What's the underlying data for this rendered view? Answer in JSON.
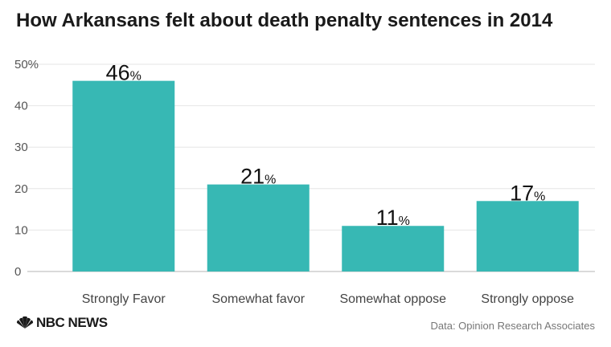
{
  "title": "How Arkansans felt about death penalty sentences in 2014",
  "chart_data": {
    "type": "bar",
    "title": "How Arkansans felt about death penalty sentences in 2014",
    "categories": [
      "Strongly Favor",
      "Somewhat favor",
      "Somewhat oppose",
      "Strongly oppose"
    ],
    "values": [
      46,
      21,
      11,
      17
    ],
    "value_suffix": "%",
    "yticks": [
      "0",
      "10",
      "20",
      "30",
      "40",
      "50%"
    ],
    "ylim": [
      0,
      50
    ],
    "grid": true,
    "bar_color": "#37b8b4"
  },
  "footer": {
    "logo": "NBC NEWS",
    "source": "Data: Opinion Research Associates"
  }
}
